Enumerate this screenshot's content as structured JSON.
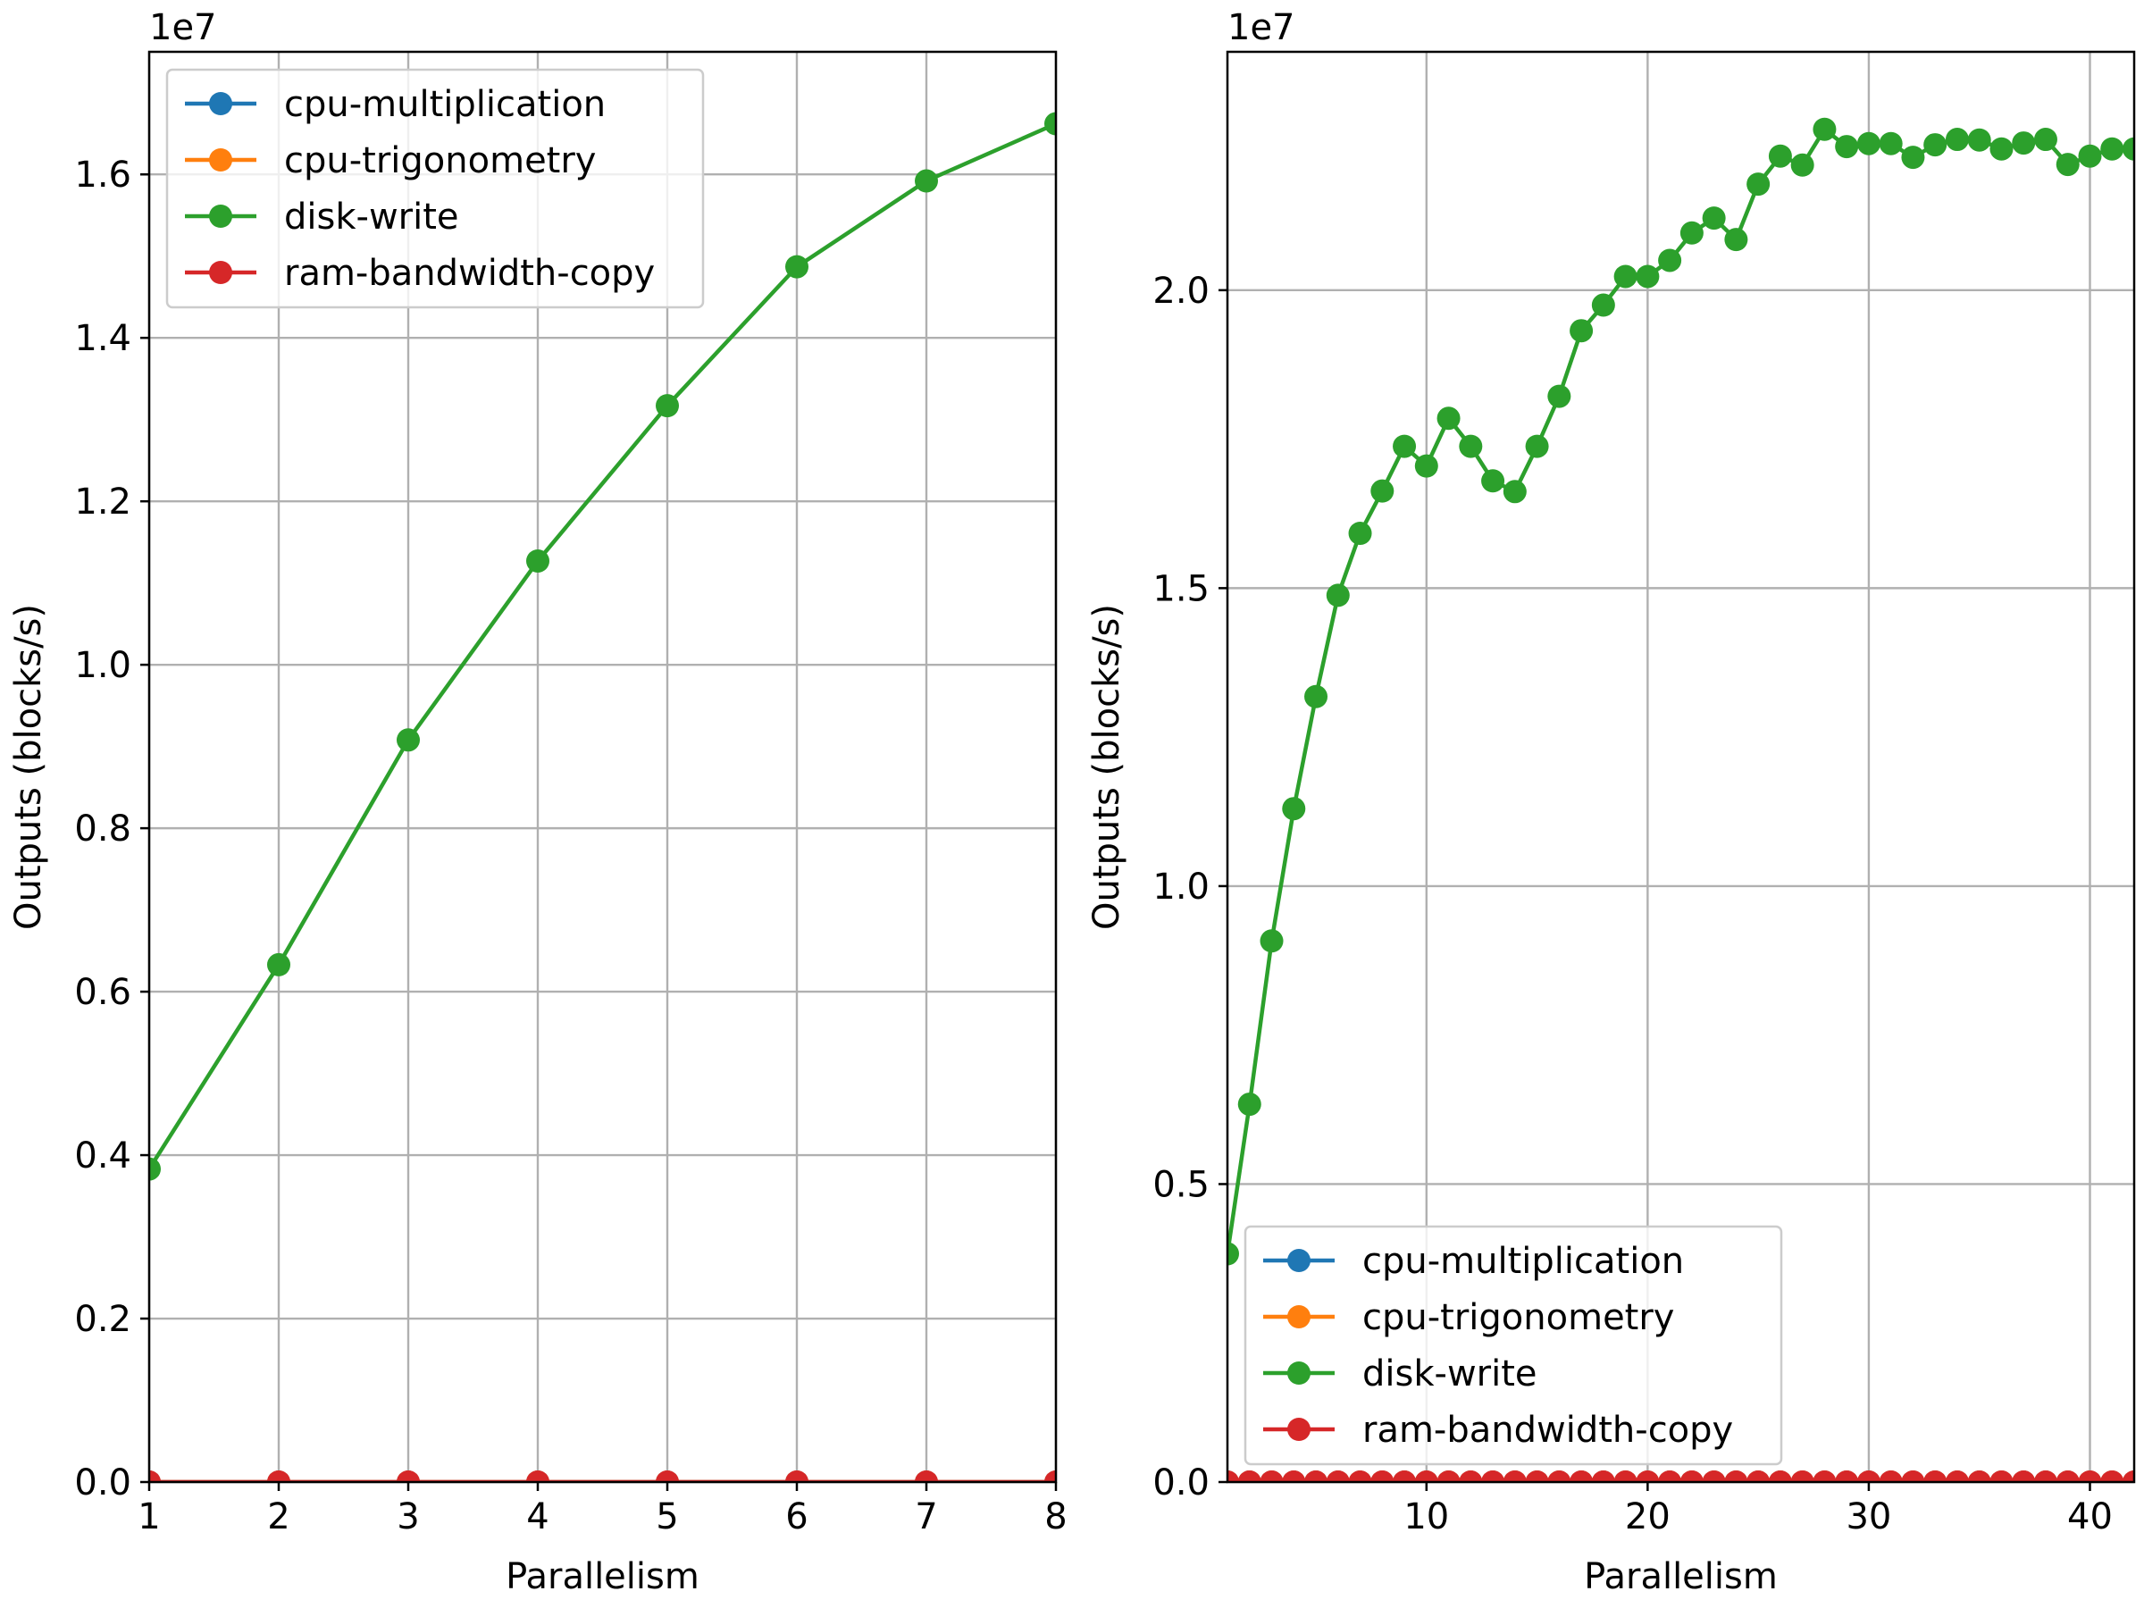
{
  "chart_data": [
    {
      "type": "line",
      "xlabel": "Parallelism",
      "ylabel": "Outputs (blocks/s)",
      "y_offset_label": "1e7",
      "xlim": [
        1,
        8
      ],
      "ylim": [
        0,
        17500000
      ],
      "x_ticks": [
        1,
        2,
        3,
        4,
        5,
        6,
        7,
        8
      ],
      "y_ticks": [
        0,
        2000000,
        4000000,
        6000000,
        8000000,
        10000000,
        12000000,
        14000000,
        16000000
      ],
      "y_tick_labels": [
        "0.0",
        "0.2",
        "0.4",
        "0.6",
        "0.8",
        "1.0",
        "1.2",
        "1.4",
        "1.6"
      ],
      "grid": true,
      "legend_position": "upper-left",
      "x": [
        1,
        2,
        3,
        4,
        5,
        6,
        7,
        8
      ],
      "series": [
        {
          "name": "cpu-multiplication",
          "color": "#1f77b4",
          "values": [
            0,
            0,
            0,
            0,
            0,
            0,
            0,
            0
          ]
        },
        {
          "name": "cpu-trigonometry",
          "color": "#ff7f0e",
          "values": [
            0,
            0,
            0,
            0,
            0,
            0,
            0,
            0
          ]
        },
        {
          "name": "disk-write",
          "color": "#2ca02c",
          "values": [
            3830000,
            6330000,
            9080000,
            11270000,
            13170000,
            14870000,
            15920000,
            16620000
          ]
        },
        {
          "name": "ram-bandwidth-copy",
          "color": "#d62728",
          "values": [
            0,
            0,
            0,
            0,
            0,
            0,
            0,
            0
          ]
        }
      ]
    },
    {
      "type": "line",
      "xlabel": "Parallelism",
      "ylabel": "Outputs (blocks/s)",
      "y_offset_label": "1e7",
      "xlim": [
        1,
        42
      ],
      "ylim": [
        0,
        24000000
      ],
      "x_ticks": [
        10,
        20,
        30,
        40
      ],
      "y_ticks": [
        0,
        5000000,
        10000000,
        15000000,
        20000000
      ],
      "y_tick_labels": [
        "0.0",
        "0.5",
        "1.0",
        "1.5",
        "2.0"
      ],
      "grid": true,
      "legend_position": "lower-left",
      "x": [
        1,
        2,
        3,
        4,
        5,
        6,
        7,
        8,
        9,
        10,
        11,
        12,
        13,
        14,
        15,
        16,
        17,
        18,
        19,
        20,
        21,
        22,
        23,
        24,
        25,
        26,
        27,
        28,
        29,
        30,
        31,
        32,
        33,
        34,
        35,
        36,
        37,
        38,
        39,
        40,
        41,
        42
      ],
      "series": [
        {
          "name": "cpu-multiplication",
          "color": "#1f77b4",
          "values": [
            0,
            0,
            0,
            0,
            0,
            0,
            0,
            0,
            0,
            0,
            0,
            0,
            0,
            0,
            0,
            0,
            0,
            0,
            0,
            0,
            0,
            0,
            0,
            0,
            0,
            0,
            0,
            0,
            0,
            0,
            0,
            0,
            0,
            0,
            0,
            0,
            0,
            0,
            0,
            0,
            0,
            0
          ]
        },
        {
          "name": "cpu-trigonometry",
          "color": "#ff7f0e",
          "values": [
            0,
            0,
            0,
            0,
            0,
            0,
            0,
            0,
            0,
            0,
            0,
            0,
            0,
            0,
            0,
            0,
            0,
            0,
            0,
            0,
            0,
            0,
            0,
            0,
            0,
            0,
            0,
            0,
            0,
            0,
            0,
            0,
            0,
            0,
            0,
            0,
            0,
            0,
            0,
            0,
            0,
            0
          ]
        },
        {
          "name": "disk-write",
          "color": "#2ca02c",
          "values": [
            3830000,
            6340000,
            9080000,
            11300000,
            13180000,
            14880000,
            15920000,
            16630000,
            17380000,
            17050000,
            17850000,
            17380000,
            16800000,
            16620000,
            17380000,
            18220000,
            19320000,
            19750000,
            20230000,
            20230000,
            20500000,
            20960000,
            21210000,
            20850000,
            21780000,
            22250000,
            22100000,
            22700000,
            22410000,
            22460000,
            22460000,
            22230000,
            22440000,
            22530000,
            22520000,
            22370000,
            22470000,
            22530000,
            22110000,
            22250000,
            22370000,
            22370000
          ]
        },
        {
          "name": "ram-bandwidth-copy",
          "color": "#d62728",
          "values": [
            0,
            0,
            0,
            0,
            0,
            0,
            0,
            0,
            0,
            0,
            0,
            0,
            0,
            0,
            0,
            0,
            0,
            0,
            0,
            0,
            0,
            0,
            0,
            0,
            0,
            0,
            0,
            0,
            0,
            0,
            0,
            0,
            0,
            0,
            0,
            0,
            0,
            0,
            0,
            0,
            0,
            0
          ]
        }
      ]
    }
  ]
}
